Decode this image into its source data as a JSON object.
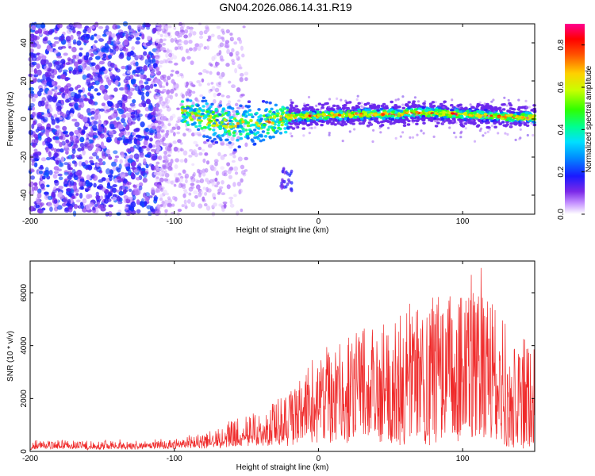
{
  "title": "GN04.2026.086.14.31.R19",
  "chart_data": [
    {
      "type": "heatmap",
      "name": "spectrogram",
      "xlabel": "Height of straight line (km)",
      "ylabel": "Frequency (Hz)",
      "xlim": [
        -200,
        150
      ],
      "ylim": [
        -50,
        50
      ],
      "x_ticks": [
        -200,
        -100,
        0,
        100
      ],
      "y_ticks": [
        -40,
        -20,
        0,
        20,
        40
      ],
      "colorbar": {
        "label": "Normalized spectral amplitude",
        "range": [
          0.0,
          0.9
        ],
        "ticks": [
          "0.0",
          "0.2",
          "0.4",
          "0.6",
          "0.8"
        ]
      },
      "regions": [
        {
          "name": "diffuse_noise",
          "x_range": [
            -200,
            -110
          ],
          "freq_range": [
            -50,
            50
          ],
          "amplitude": "0.05-0.25",
          "density": "high"
        },
        {
          "name": "sparse_noise",
          "x_range": [
            -110,
            -55
          ],
          "freq_range": [
            -50,
            50
          ],
          "amplitude": "0.02-0.1",
          "density": "decreasing"
        },
        {
          "name": "signal_descent",
          "x_range": [
            -95,
            -20
          ],
          "freq_center_range": [
            5,
            -3
          ],
          "amplitude": "0.3-0.8"
        },
        {
          "name": "low_tail",
          "x_range": [
            -25,
            -18
          ],
          "freq_range": [
            -37,
            -28
          ],
          "amplitude": "0.1-0.2"
        },
        {
          "name": "signal_band",
          "x_range": [
            -20,
            150
          ],
          "freq_center_range": [
            0,
            4
          ],
          "amplitude": "0.4-0.9"
        }
      ]
    },
    {
      "type": "line",
      "name": "snr",
      "xlabel": "Height of straight line (km)",
      "ylabel": "SNR (10 * v/v)",
      "xlim": [
        -200,
        150
      ],
      "ylim": [
        0,
        7200
      ],
      "x_ticks": [
        -200,
        -100,
        0,
        100
      ],
      "y_ticks": [
        0,
        2000,
        4000,
        6000
      ],
      "color": "#ef2a2a",
      "envelope": [
        {
          "x": -200,
          "base": 150,
          "peak": 450
        },
        {
          "x": -150,
          "base": 150,
          "peak": 450
        },
        {
          "x": -100,
          "base": 200,
          "peak": 500
        },
        {
          "x": -80,
          "base": 250,
          "peak": 800
        },
        {
          "x": -60,
          "base": 300,
          "peak": 1300
        },
        {
          "x": -40,
          "base": 400,
          "peak": 1700
        },
        {
          "x": -20,
          "base": 500,
          "peak": 2500
        },
        {
          "x": 0,
          "base": 500,
          "peak": 3800
        },
        {
          "x": 20,
          "base": 600,
          "peak": 4600
        },
        {
          "x": 40,
          "base": 600,
          "peak": 5200
        },
        {
          "x": 60,
          "base": 500,
          "peak": 5500
        },
        {
          "x": 80,
          "base": 500,
          "peak": 6100
        },
        {
          "x": 100,
          "base": 600,
          "peak": 6600
        },
        {
          "x": 115,
          "base": 600,
          "peak": 7100
        },
        {
          "x": 130,
          "base": 300,
          "peak": 5000
        },
        {
          "x": 150,
          "base": 200,
          "peak": 4300
        }
      ]
    }
  ]
}
